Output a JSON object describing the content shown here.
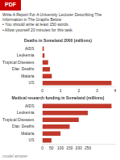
{
  "chart_data": [
    {
      "type": "bar",
      "orientation": "horizontal",
      "title": "Deaths in Someland 2000 (millions)",
      "categories": [
        "AIDS",
        "Leukemia",
        "Tropical Diseases",
        "Diar. Deaths",
        "Malaria",
        "US"
      ],
      "values": [
        0.08,
        0.12,
        0.32,
        0.42,
        0.52,
        3.8
      ],
      "color": "#c0392b",
      "xlim": [
        0,
        4
      ],
      "xticks": [
        0,
        1,
        2,
        3,
        4
      ],
      "grid": false,
      "annotations": [
        "PDF",
        "Write A Report For A University Lecturer Describing The Information in The Graphs Below",
        "• You should write at least 150 words.",
        "• Allow yourself 20 minutes for this task."
      ]
    },
    {
      "type": "bar",
      "orientation": "horizontal",
      "title": "Medical research funding in Someland (millions)",
      "categories": [
        "AIDS",
        "Leukemia",
        "Tropical Diseases",
        "Diar. Deaths",
        "Malaria",
        "US"
      ],
      "values": [
        380,
        250,
        200,
        150,
        100,
        50
      ],
      "color": "#c0392b",
      "xlim": [
        0,
        400
      ],
      "xticks": [
        0,
        50,
        100,
        150,
        200,
        250
      ],
      "grid": false,
      "annotations": [
        "model answer"
      ]
    }
  ]
}
